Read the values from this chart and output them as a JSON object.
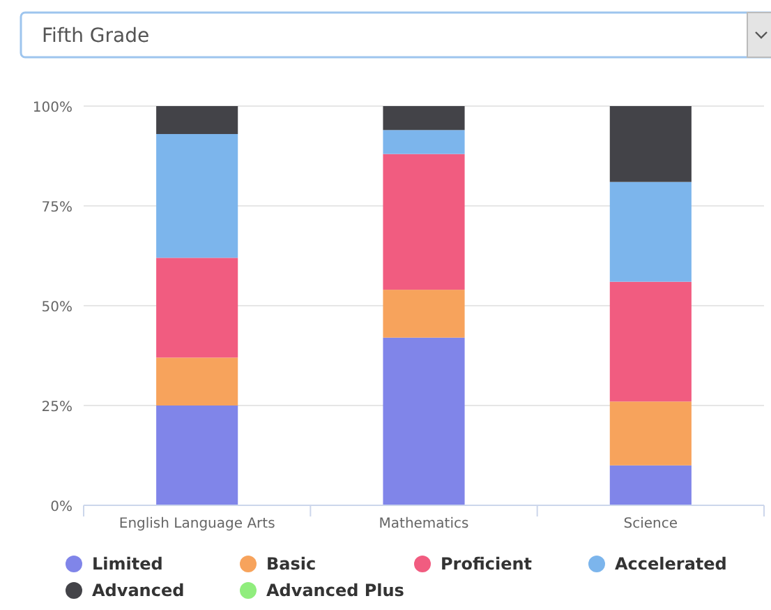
{
  "chart_data": {
    "type": "bar",
    "title": "Fifth Grade",
    "stacked": true,
    "categories": [
      "English Language Arts",
      "Mathematics",
      "Science"
    ],
    "series": [
      {
        "name": "Limited",
        "color": "#8085e9",
        "values": [
          25,
          42,
          10
        ]
      },
      {
        "name": "Basic",
        "color": "#f7a35c",
        "values": [
          12,
          12,
          16
        ]
      },
      {
        "name": "Proficient",
        "color": "#f15c80",
        "values": [
          25,
          34,
          30
        ]
      },
      {
        "name": "Accelerated",
        "color": "#7cb5ec",
        "values": [
          31,
          6,
          25
        ]
      },
      {
        "name": "Advanced",
        "color": "#434348",
        "values": [
          7,
          6,
          19
        ]
      },
      {
        "name": "Advanced Plus",
        "color": "#90ed7d",
        "values": [
          0,
          0,
          0
        ]
      }
    ],
    "ylim": [
      0,
      100
    ],
    "yticks": [
      {
        "value": 0,
        "label": "0%"
      },
      {
        "value": 25,
        "label": "25%"
      },
      {
        "value": 50,
        "label": "50%"
      },
      {
        "value": 75,
        "label": "75%"
      },
      {
        "value": 100,
        "label": "100%"
      }
    ],
    "grid": "y",
    "legend": "bottom"
  }
}
